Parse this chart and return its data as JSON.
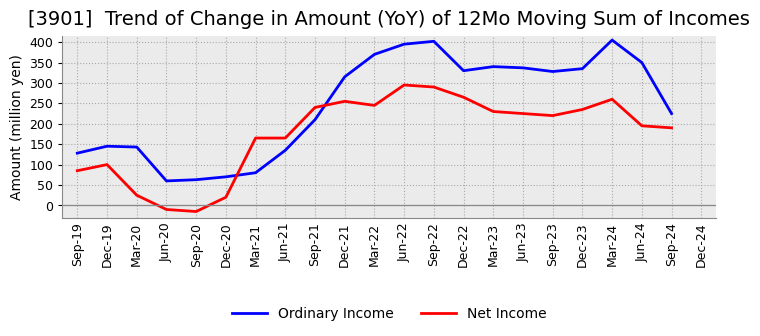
{
  "title": "[3901]  Trend of Change in Amount (YoY) of 12Mo Moving Sum of Incomes",
  "ylabel": "Amount (million yen)",
  "x_labels": [
    "Sep-19",
    "Dec-19",
    "Mar-20",
    "Jun-20",
    "Sep-20",
    "Dec-20",
    "Mar-21",
    "Jun-21",
    "Sep-21",
    "Dec-21",
    "Mar-22",
    "Jun-22",
    "Sep-22",
    "Dec-22",
    "Mar-23",
    "Jun-23",
    "Sep-23",
    "Dec-23",
    "Mar-24",
    "Jun-24",
    "Sep-24",
    "Dec-24"
  ],
  "ordinary_income": [
    128,
    145,
    143,
    60,
    63,
    70,
    80,
    135,
    210,
    315,
    370,
    395,
    402,
    330,
    340,
    337,
    328,
    335,
    405,
    350,
    225,
    null
  ],
  "net_income": [
    85,
    100,
    25,
    -10,
    -15,
    20,
    165,
    165,
    240,
    255,
    245,
    295,
    290,
    265,
    230,
    225,
    220,
    235,
    260,
    195,
    190,
    null
  ],
  "ordinary_income_color": "#0000FF",
  "net_income_color": "#FF0000",
  "background_color": "#FFFFFF",
  "plot_bg_color": "#E8E8E8",
  "ylim": [
    -30,
    415
  ],
  "yticks": [
    0,
    50,
    100,
    150,
    200,
    250,
    300,
    350,
    400
  ],
  "grid_color": "#AAAAAA",
  "title_fontsize": 14,
  "legend_fontsize": 10,
  "tick_fontsize": 9
}
